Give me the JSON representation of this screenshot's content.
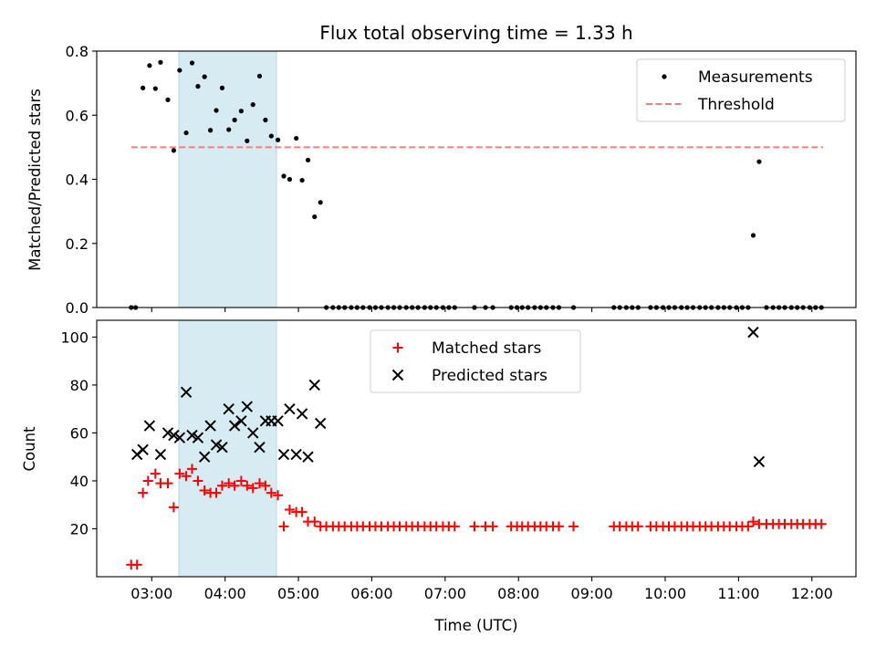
{
  "chart_data": [
    {
      "type": "scatter",
      "title": "Flux total observing time = 1.33 h",
      "ylabel": "Matched/Predicted stars",
      "xlabel": "",
      "xlim_hours": [
        2.25,
        12.6
      ],
      "ylim": [
        0,
        0.8
      ],
      "yticks": [
        0.0,
        0.2,
        0.4,
        0.6,
        0.8
      ],
      "ytick_labels": [
        "0.0",
        "0.2",
        "0.4",
        "0.6",
        "0.8"
      ],
      "shaded_region_hours": [
        3.37,
        4.7
      ],
      "shaded_color": "#add8e6",
      "legend_position": "upper-right",
      "threshold": {
        "name": "Threshold",
        "value": 0.5,
        "x_range_hours": [
          2.72,
          12.15
        ],
        "color": "#f08080"
      },
      "series": [
        {
          "name": "Measurements",
          "marker": "dot",
          "color": "#000000",
          "x_hours": [
            2.72,
            2.78,
            2.88,
            2.97,
            3.05,
            3.12,
            3.22,
            3.3,
            3.38,
            3.47,
            3.55,
            3.63,
            3.72,
            3.8,
            3.88,
            3.96,
            4.05,
            4.13,
            4.22,
            4.3,
            4.38,
            4.47,
            4.55,
            4.63,
            4.72,
            4.8,
            4.88,
            4.97,
            5.05,
            5.13,
            5.22,
            5.3,
            5.38,
            5.47,
            5.55,
            5.63,
            5.72,
            5.8,
            5.88,
            5.97,
            6.05,
            6.13,
            6.22,
            6.3,
            6.38,
            6.47,
            6.55,
            6.63,
            6.72,
            6.8,
            6.88,
            6.97,
            7.05,
            7.13,
            7.4,
            7.55,
            7.65,
            7.9,
            7.98,
            8.05,
            8.13,
            8.22,
            8.3,
            8.38,
            8.47,
            8.55,
            8.75,
            9.3,
            9.38,
            9.47,
            9.55,
            9.63,
            9.8,
            9.88,
            9.97,
            10.05,
            10.13,
            10.22,
            10.3,
            10.38,
            10.47,
            10.55,
            10.63,
            10.72,
            10.8,
            10.88,
            10.97,
            11.05,
            11.13,
            11.2,
            11.28,
            11.38,
            11.47,
            11.55,
            11.63,
            11.72,
            11.8,
            11.88,
            11.97,
            12.05,
            12.13
          ],
          "y": [
            0.0,
            0.0,
            0.685,
            0.755,
            0.683,
            0.765,
            0.648,
            0.49,
            0.74,
            0.545,
            0.763,
            0.69,
            0.72,
            0.553,
            0.615,
            0.685,
            0.555,
            0.585,
            0.613,
            0.52,
            0.633,
            0.722,
            0.585,
            0.535,
            0.523,
            0.41,
            0.4,
            0.528,
            0.397,
            0.46,
            0.283,
            0.328,
            0.0,
            0.0,
            0.0,
            0.0,
            0.0,
            0.0,
            0.0,
            0.0,
            0.0,
            0.0,
            0.0,
            0.0,
            0.0,
            0.0,
            0.0,
            0.0,
            0.0,
            0.0,
            0.0,
            0.0,
            0.0,
            0.0,
            0.0,
            0.0,
            0.0,
            0.0,
            0.0,
            0.0,
            0.0,
            0.0,
            0.0,
            0.0,
            0.0,
            0.0,
            0.0,
            0.0,
            0.0,
            0.0,
            0.0,
            0.0,
            0.0,
            0.0,
            0.0,
            0.0,
            0.0,
            0.0,
            0.0,
            0.0,
            0.0,
            0.0,
            0.0,
            0.0,
            0.0,
            0.0,
            0.0,
            0.0,
            0.0,
            0.225,
            0.455,
            0.0,
            0.0,
            0.0,
            0.0,
            0.0,
            0.0,
            0.0,
            0.0,
            0.0,
            0.0
          ]
        }
      ]
    },
    {
      "type": "scatter",
      "title": "",
      "ylabel": "Count",
      "xlabel": "Time (UTC)",
      "xlim_hours": [
        2.25,
        12.6
      ],
      "xticks_hours": [
        3,
        4,
        5,
        6,
        7,
        8,
        9,
        10,
        11,
        12
      ],
      "xtick_labels": [
        "03:00",
        "04:00",
        "05:00",
        "06:00",
        "07:00",
        "08:00",
        "09:00",
        "10:00",
        "11:00",
        "12:00"
      ],
      "ylim": [
        0,
        107
      ],
      "yticks": [
        20,
        40,
        60,
        80,
        100
      ],
      "ytick_labels": [
        "20",
        "40",
        "60",
        "80",
        "100"
      ],
      "shaded_region_hours": [
        3.37,
        4.7
      ],
      "shaded_color": "#add8e6",
      "legend_position": "upper-center",
      "series": [
        {
          "name": "Matched stars",
          "marker": "plus",
          "color": "#ff0000",
          "x_hours": [
            2.72,
            2.8,
            2.88,
            2.95,
            3.05,
            3.12,
            3.22,
            3.3,
            3.38,
            3.47,
            3.55,
            3.63,
            3.72,
            3.8,
            3.88,
            3.96,
            4.05,
            4.13,
            4.22,
            4.3,
            4.38,
            4.47,
            4.55,
            4.63,
            4.72,
            4.8,
            4.88,
            4.97,
            5.05,
            5.13,
            5.22,
            5.3,
            5.38,
            5.47,
            5.55,
            5.63,
            5.72,
            5.8,
            5.88,
            5.97,
            6.05,
            6.13,
            6.22,
            6.3,
            6.38,
            6.47,
            6.55,
            6.63,
            6.72,
            6.8,
            6.88,
            6.97,
            7.05,
            7.13,
            7.4,
            7.55,
            7.65,
            7.9,
            7.98,
            8.05,
            8.13,
            8.22,
            8.3,
            8.38,
            8.47,
            8.55,
            8.75,
            9.3,
            9.38,
            9.47,
            9.55,
            9.63,
            9.8,
            9.88,
            9.97,
            10.05,
            10.13,
            10.22,
            10.3,
            10.38,
            10.47,
            10.55,
            10.63,
            10.72,
            10.8,
            10.88,
            10.97,
            11.05,
            11.13,
            11.2,
            11.28,
            11.38,
            11.47,
            11.55,
            11.63,
            11.72,
            11.8,
            11.88,
            11.97,
            12.05,
            12.13
          ],
          "y": [
            5,
            5,
            35,
            40,
            43,
            39,
            39,
            29,
            43,
            42,
            45,
            40,
            36,
            35,
            35,
            38,
            39,
            38,
            40,
            38,
            37,
            39,
            38,
            35,
            34,
            21,
            28,
            27,
            27,
            23,
            23,
            21,
            21,
            21,
            21,
            21,
            21,
            21,
            21,
            21,
            21,
            21,
            21,
            21,
            21,
            21,
            21,
            21,
            21,
            21,
            21,
            21,
            21,
            21,
            21,
            21,
            21,
            21,
            21,
            21,
            21,
            21,
            21,
            21,
            21,
            21,
            21,
            21,
            21,
            21,
            21,
            21,
            21,
            21,
            21,
            21,
            21,
            21,
            21,
            21,
            21,
            21,
            21,
            21,
            21,
            21,
            21,
            21,
            21,
            23,
            22,
            22,
            22,
            22,
            22,
            22,
            22,
            22,
            22,
            22,
            22
          ]
        },
        {
          "name": "Predicted stars",
          "marker": "cross",
          "color": "#000000",
          "x_hours": [
            2.8,
            2.88,
            2.97,
            3.12,
            3.22,
            3.3,
            3.38,
            3.47,
            3.55,
            3.63,
            3.72,
            3.8,
            3.88,
            3.96,
            4.05,
            4.13,
            4.22,
            4.3,
            4.38,
            4.47,
            4.55,
            4.63,
            4.72,
            4.8,
            4.88,
            4.97,
            5.05,
            5.13,
            5.22,
            5.3,
            11.2,
            11.28
          ],
          "y": [
            51,
            53,
            63,
            51,
            60,
            59,
            58,
            77,
            59,
            58,
            50,
            63,
            55,
            54,
            70,
            63,
            65,
            71,
            60,
            54,
            65,
            65,
            65,
            51,
            70,
            51,
            68,
            50,
            80,
            64,
            102,
            48
          ]
        }
      ]
    }
  ]
}
